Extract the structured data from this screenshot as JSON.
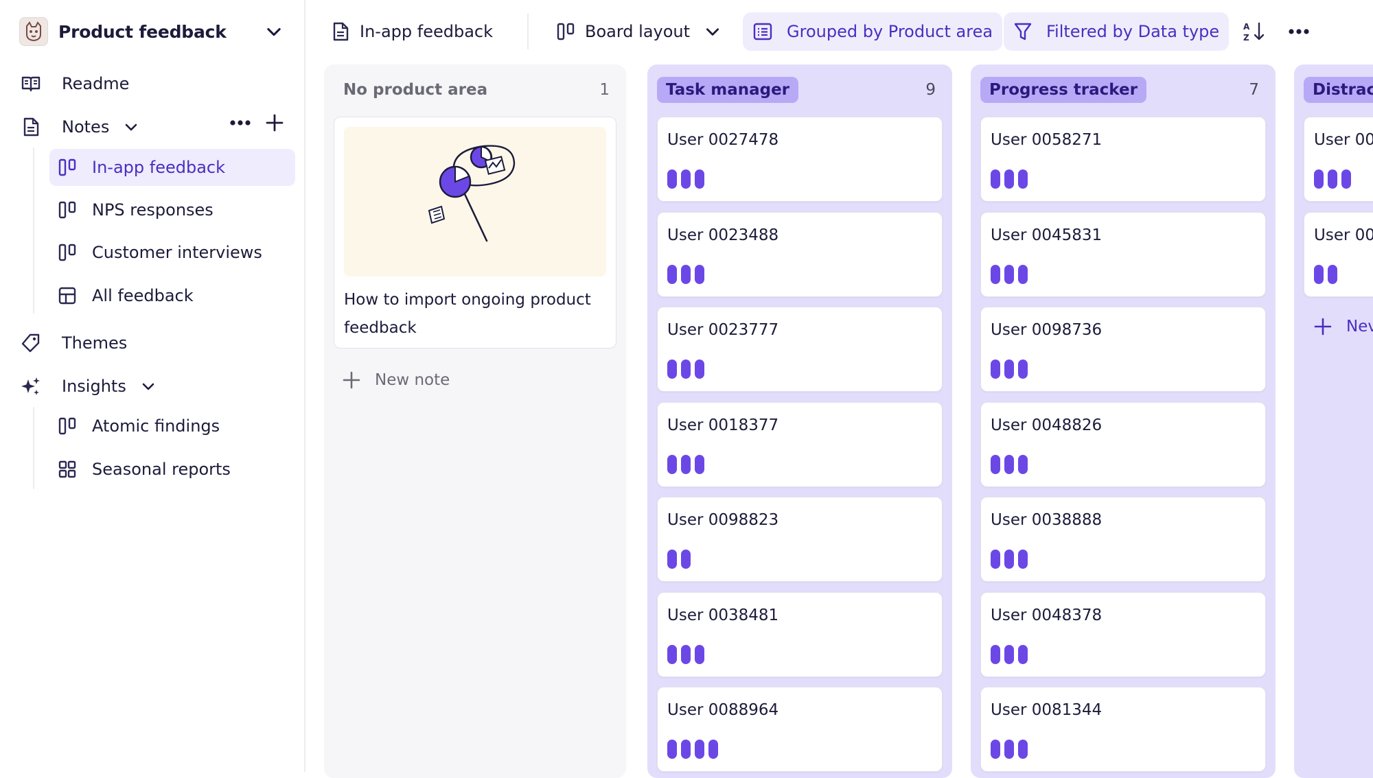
{
  "workspace": {
    "name": "Product feedback"
  },
  "sidebar": {
    "readme": "Readme",
    "notes": "Notes",
    "notes_items": [
      "In-app feedback",
      "NPS responses",
      "Customer interviews",
      "All feedback"
    ],
    "themes": "Themes",
    "insights": "Insights",
    "insights_items": [
      "Atomic findings",
      "Seasonal reports"
    ]
  },
  "toolbar": {
    "view_name": "In-app feedback",
    "layout": "Board layout",
    "group": "Grouped by Product area",
    "filter": "Filtered by Data type"
  },
  "board": {
    "accent": "#6b48e6",
    "columns": [
      {
        "title": "No product area",
        "count": "1",
        "note_title": "How to import ongoing product feedback",
        "new_note": "New note"
      },
      {
        "title": "Task manager",
        "count": "9",
        "cards": [
          {
            "title": "User 0027478",
            "bars": 3
          },
          {
            "title": "User 0023488",
            "bars": 3
          },
          {
            "title": "User 0023777",
            "bars": 3
          },
          {
            "title": "User 0018377",
            "bars": 3
          },
          {
            "title": "User 0098823",
            "bars": 2
          },
          {
            "title": "User 0038481",
            "bars": 3
          },
          {
            "title": "User 0088964",
            "bars": 4
          }
        ]
      },
      {
        "title": "Progress tracker",
        "count": "7",
        "cards": [
          {
            "title": "User 0058271",
            "bars": 3
          },
          {
            "title": "User 0045831",
            "bars": 3
          },
          {
            "title": "User 0098736",
            "bars": 3
          },
          {
            "title": "User 0048826",
            "bars": 3
          },
          {
            "title": "User 0038888",
            "bars": 3
          },
          {
            "title": "User 0048378",
            "bars": 3
          },
          {
            "title": "User 0081344",
            "bars": 3
          }
        ]
      },
      {
        "title": "Distrac",
        "cards": [
          {
            "title": "User 00",
            "bars": 3
          },
          {
            "title": "User 00",
            "bars": 2
          }
        ],
        "new_note": "Nev"
      }
    ]
  }
}
